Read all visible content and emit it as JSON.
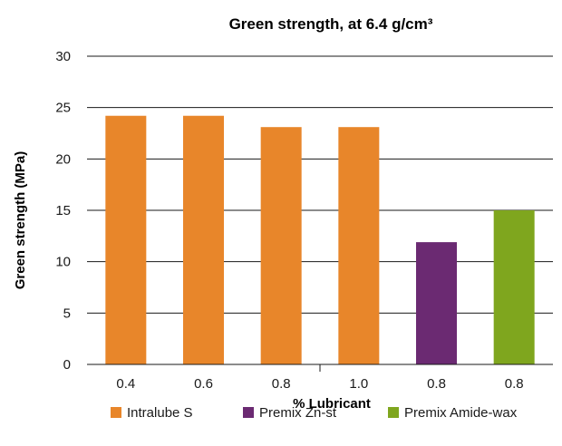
{
  "chart_data": {
    "type": "bar",
    "title": "Green strength, at 6.4 g/cm³",
    "xlabel": "% Lubricant",
    "ylabel": "Green strength (MPa)",
    "ylim": [
      0,
      30
    ],
    "yticks": [
      "0",
      "5",
      "10",
      "15",
      "20",
      "25",
      "30"
    ],
    "grid": true,
    "legend_position": "bottom",
    "categories": [
      "0.4",
      "0.6",
      "0.8",
      "1.0",
      "0.8",
      "0.8"
    ],
    "values": [
      24.2,
      24.2,
      23.1,
      23.1,
      11.9,
      15.0
    ],
    "bar_series": [
      0,
      0,
      0,
      0,
      1,
      2
    ],
    "series": [
      {
        "name": "Intralube S",
        "color": "#e8862a"
      },
      {
        "name": "Premix Zn-st",
        "color": "#6b2a72"
      },
      {
        "name": "Premix Amide-wax",
        "color": "#7fa61e"
      }
    ]
  }
}
